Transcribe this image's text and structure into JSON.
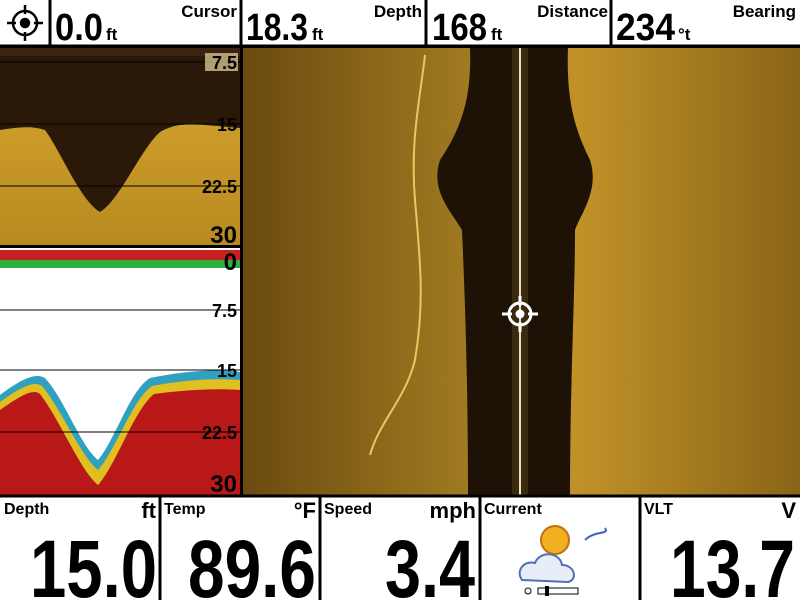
{
  "top_bar": [
    {
      "value": "0.0",
      "unit": "ft",
      "label": "Cursor"
    },
    {
      "value": "18.3",
      "unit": "ft",
      "label": "Depth"
    },
    {
      "value": "168",
      "unit": "ft",
      "label": "Distance"
    },
    {
      "value": "234",
      "unit": "°t",
      "label": "Bearing"
    }
  ],
  "down_imaging_scale": [
    "7.5",
    "15",
    "22.5",
    "30"
  ],
  "sonar_scale": [
    "0",
    "7.5",
    "15",
    "22.5",
    "30"
  ],
  "bottom_bar": [
    {
      "label": "Depth",
      "unit": "ft",
      "value": "15.0"
    },
    {
      "label": "Temp",
      "unit": "°F",
      "value": "89.6"
    },
    {
      "label": "Speed",
      "unit": "mph",
      "value": "3.4"
    },
    {
      "label": "Current"
    },
    {
      "label": "VLT",
      "unit": "V",
      "value": "13.7"
    }
  ]
}
